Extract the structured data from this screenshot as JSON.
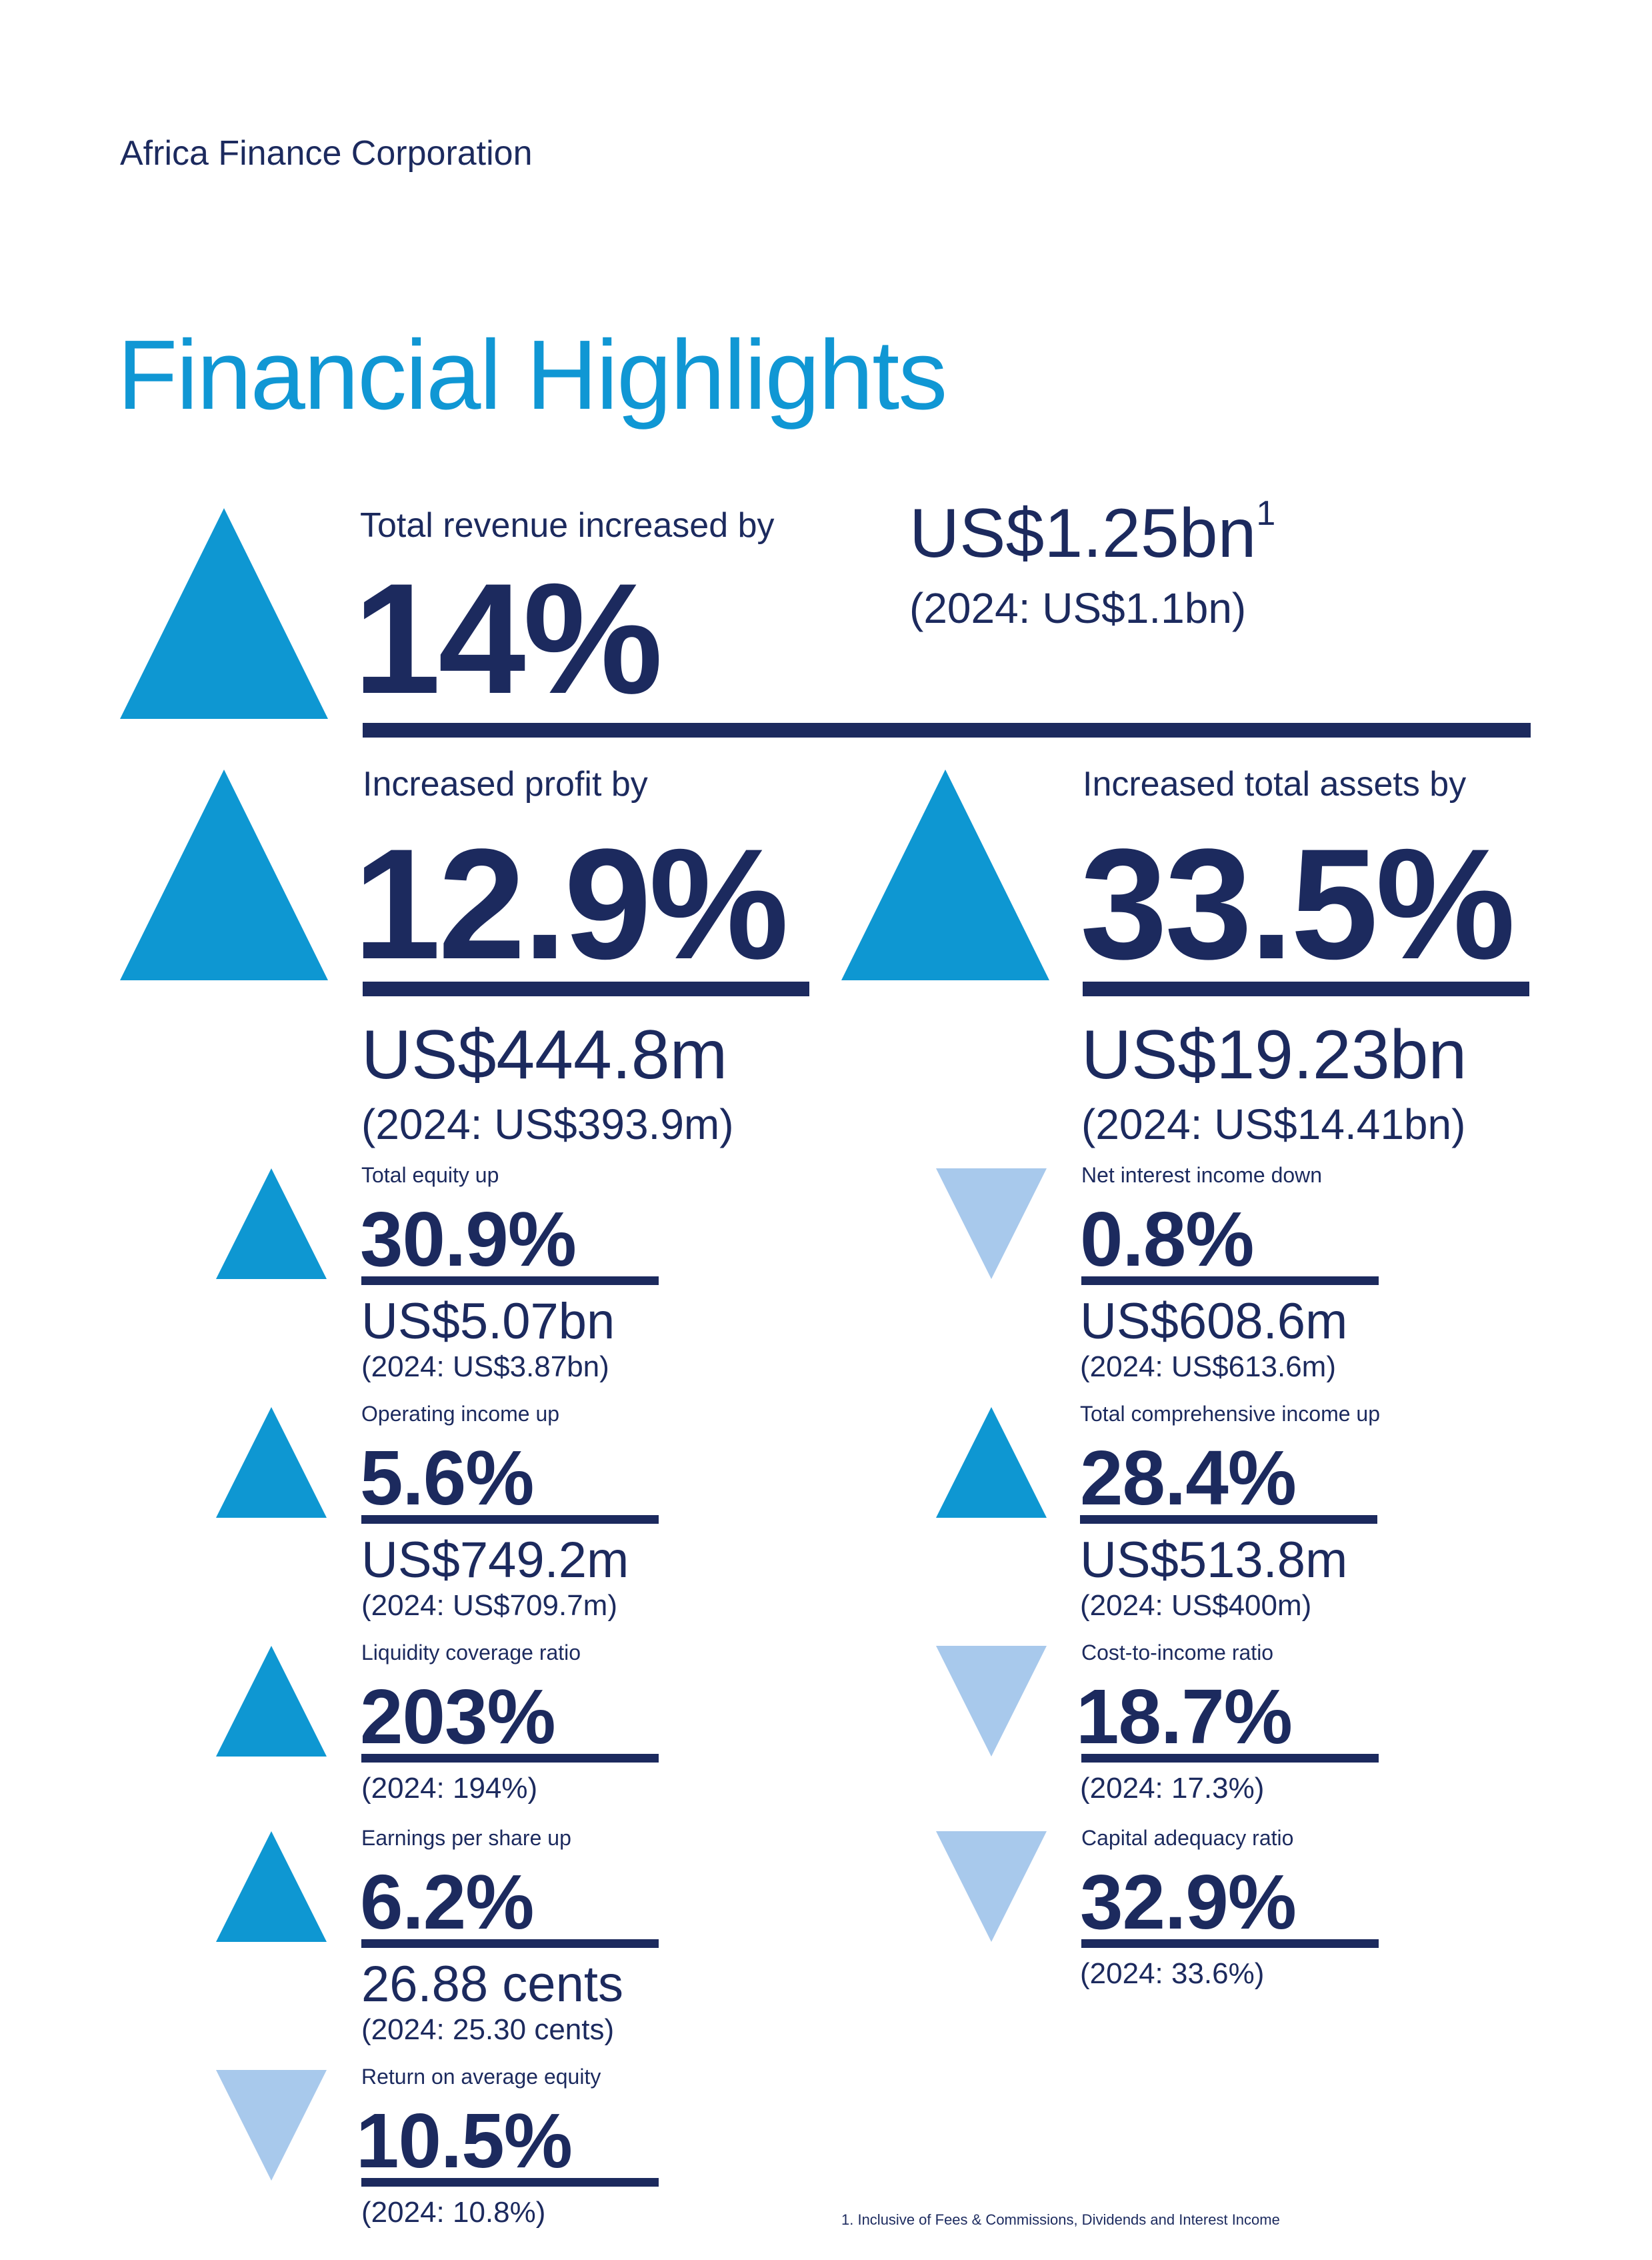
{
  "header": {
    "org": "Africa Finance Corporation",
    "title": "Financial Highlights"
  },
  "revenue": {
    "label": "Total revenue increased by",
    "change": "14%",
    "value": "US$1.25bn",
    "footnote_marker": "1",
    "prior": "(2024: US$1.1bn)",
    "direction": "up"
  },
  "profit": {
    "label": "Increased profit by",
    "change": "12.9%",
    "value": "US$444.8m",
    "prior": "(2024: US$393.9m)",
    "direction": "up"
  },
  "assets": {
    "label": "Increased total assets by",
    "change": "33.5%",
    "value": "US$19.23bn",
    "prior": "(2024: US$14.41bn)",
    "direction": "up"
  },
  "metrics": [
    {
      "id": "total-equity",
      "label": "Total equity up",
      "change": "30.9%",
      "value": "US$5.07bn",
      "prior": "(2024: US$3.87bn)",
      "direction": "up"
    },
    {
      "id": "net-interest-income",
      "label": "Net interest income down",
      "change": "0.8%",
      "value": "US$608.6m",
      "prior": "(2024: US$613.6m)",
      "direction": "down"
    },
    {
      "id": "operating-income",
      "label": "Operating income up",
      "change": "5.6%",
      "value": "US$749.2m",
      "prior": "(2024: US$709.7m)",
      "direction": "up"
    },
    {
      "id": "total-comprehensive-income",
      "label": "Total comprehensive income up",
      "change": "28.4%",
      "value": "US$513.8m",
      "prior": "(2024: US$400m)",
      "direction": "up"
    },
    {
      "id": "liquidity-coverage-ratio",
      "label": "Liquidity coverage ratio",
      "change": "203%",
      "prior": "(2024: 194%)",
      "direction": "up"
    },
    {
      "id": "cost-to-income-ratio",
      "label": "Cost-to-income ratio",
      "change": "18.7%",
      "prior": "(2024: 17.3%)",
      "direction": "down"
    },
    {
      "id": "earnings-per-share",
      "label": "Earnings per share up",
      "change": "6.2%",
      "value": "26.88 cents",
      "prior": "(2024: 25.30 cents)",
      "direction": "up"
    },
    {
      "id": "capital-adequacy-ratio",
      "label": "Capital adequacy ratio",
      "change": "32.9%",
      "prior": "(2024: 33.6%)",
      "direction": "down"
    },
    {
      "id": "return-on-average-equity",
      "label": "Return on average equity",
      "change": "10.5%",
      "prior": "(2024: 10.8%)",
      "direction": "down"
    }
  ],
  "footnote": "1. Inclusive of Fees & Commissions, Dividends and Interest Income",
  "colors": {
    "navy": "#1c2a5e",
    "accent_blue": "#1097d4",
    "triangle_up": "#0e97d2",
    "triangle_down": "#a8c9ec"
  }
}
